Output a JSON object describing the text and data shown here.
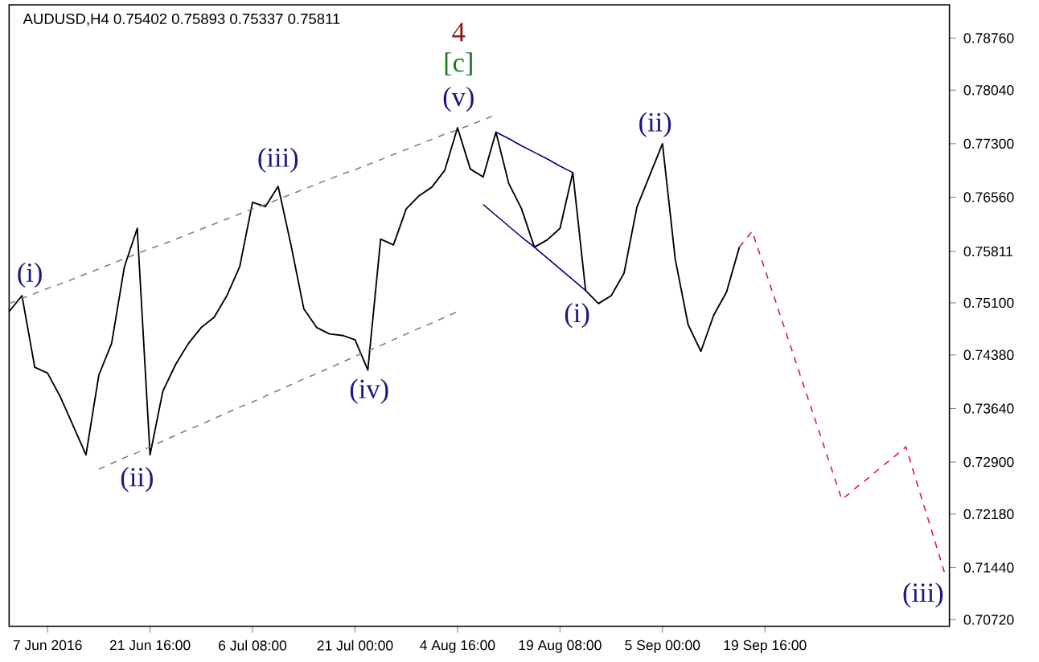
{
  "chart_data": {
    "type": "line",
    "title": "AUDUSD,H4  0.75402 0.75893 0.75337 0.75811",
    "categories": [
      null,
      null,
      null,
      "7 Jun 2016",
      null,
      null,
      null,
      null,
      null,
      null,
      null,
      "21 Jun 16:00",
      null,
      null,
      null,
      null,
      null,
      null,
      null,
      "6 Jul 08:00",
      null,
      null,
      null,
      null,
      null,
      null,
      null,
      "21 Jul 00:00",
      null,
      null,
      null,
      null,
      null,
      null,
      null,
      "4 Aug 16:00",
      null,
      null,
      null,
      null,
      null,
      null,
      null,
      "19 Aug 08:00",
      null,
      null,
      null,
      null,
      null,
      null,
      null,
      "5 Sep 00:00",
      null,
      null,
      null,
      null,
      null,
      null,
      null,
      "19 Sep 16:00",
      null,
      null,
      null,
      null,
      null,
      null,
      null,
      null,
      null,
      null,
      null,
      null,
      null,
      null
    ],
    "ylim": [
      0.7063,
      0.7922
    ],
    "yticks": [
      {
        "value": 0.7876,
        "label": "0.78760"
      },
      {
        "value": 0.7804,
        "label": "0.78040"
      },
      {
        "value": 0.773,
        "label": "0.77300"
      },
      {
        "value": 0.7656,
        "label": "0.76560"
      },
      0.75811,
      {
        "value": 0.751,
        "label": "0.75100"
      },
      {
        "value": 0.7438,
        "label": "0.74380"
      },
      {
        "value": 0.7364,
        "label": "0.73640"
      },
      {
        "value": 0.729,
        "label": "0.72900"
      },
      {
        "value": 0.7218,
        "label": "0.72180"
      },
      {
        "value": 0.7144,
        "label": "0.71440"
      },
      {
        "value": 0.7072,
        "label": "0.70720"
      }
    ],
    "grid": false,
    "marker": "none",
    "series": [
      {
        "color": "#000000",
        "line_style": "solid",
        "values": [
          0.7498,
          0.752,
          0.7421,
          0.7413,
          0.738,
          0.734,
          0.73,
          0.741,
          0.7454,
          0.756,
          0.7613,
          0.73,
          0.7388,
          0.7425,
          0.7454,
          0.7476,
          0.749,
          0.752,
          0.756,
          0.7649,
          0.7643,
          0.7671,
          0.759,
          0.7502,
          0.7476,
          0.7467,
          0.7465,
          0.7459,
          0.7417,
          0.7598,
          0.759,
          0.764,
          0.7658,
          0.767,
          0.7693,
          0.7752,
          0.7695,
          0.7684,
          0.7746,
          0.7675,
          0.764,
          0.7587,
          0.7597,
          0.7613,
          0.769,
          0.7527,
          0.7509,
          0.752,
          0.7551,
          0.7642,
          0.7686,
          0.773,
          0.757,
          0.748,
          0.7443,
          0.7493,
          0.7525,
          0.7587,
          null,
          null,
          null,
          null,
          null,
          null,
          null,
          null,
          null,
          null,
          null,
          null,
          null,
          null,
          null,
          null
        ]
      },
      {
        "color": "#e0143c",
        "line_style": "dashed",
        "values": [
          null,
          null,
          null,
          null,
          null,
          null,
          null,
          null,
          null,
          null,
          null,
          null,
          null,
          null,
          null,
          null,
          null,
          null,
          null,
          null,
          null,
          null,
          null,
          null,
          null,
          null,
          null,
          null,
          null,
          null,
          null,
          null,
          null,
          null,
          null,
          null,
          null,
          null,
          null,
          null,
          null,
          null,
          null,
          null,
          null,
          null,
          null,
          null,
          null,
          null,
          null,
          null,
          null,
          null,
          null,
          null,
          null,
          0.7587,
          0.7609,
          0.7556,
          0.7503,
          0.745,
          0.7397,
          0.7344,
          0.7291,
          0.7238,
          0.7253,
          0.7267,
          0.7282,
          0.7296,
          0.7311,
          0.7253,
          0.7196,
          0.7138
        ]
      },
      {
        "color": "#808080",
        "line_style": "dashed",
        "values": [
          0.7509,
          0.7516,
          0.7523,
          0.753,
          0.7536,
          0.7543,
          0.755,
          0.7557,
          0.7564,
          0.7571,
          0.7578,
          0.7585,
          0.7591,
          0.7598,
          0.7605,
          0.7612,
          0.7619,
          0.7626,
          0.7633,
          0.764,
          0.7646,
          0.7653,
          0.766,
          0.7667,
          0.7674,
          0.7681,
          0.7688,
          0.7694,
          0.7701,
          0.7708,
          0.7715,
          0.7722,
          0.7729,
          0.7736,
          0.7743,
          0.7749,
          0.7756,
          0.7763,
          0.777,
          null,
          null,
          null,
          null,
          null,
          null,
          null,
          null,
          null,
          null,
          null,
          null,
          null,
          null,
          null,
          null,
          null,
          null,
          null,
          null,
          null,
          null,
          null,
          null,
          null,
          null,
          null,
          null,
          null,
          null,
          null,
          null,
          null,
          null,
          null
        ]
      },
      {
        "color": "#808080",
        "line_style": "dashed",
        "values": [
          null,
          null,
          null,
          null,
          null,
          null,
          null,
          0.728,
          0.7288,
          0.7296,
          0.7303,
          0.7311,
          0.7319,
          0.7327,
          0.7335,
          0.7342,
          0.735,
          0.7358,
          0.7366,
          0.7373,
          0.7381,
          0.7389,
          0.7397,
          0.7405,
          0.7412,
          0.742,
          0.7428,
          0.7436,
          0.7444,
          0.7451,
          0.7459,
          0.7467,
          0.7475,
          0.7482,
          0.749,
          0.7498,
          null,
          null,
          null,
          null,
          null,
          null,
          null,
          null,
          null,
          null,
          null,
          null,
          null,
          null,
          null,
          null,
          null,
          null,
          null,
          null,
          null,
          null,
          null,
          null,
          null,
          null,
          null,
          null,
          null,
          null,
          null,
          null,
          null,
          null,
          null,
          null,
          null,
          null
        ]
      },
      {
        "color": "#000080",
        "line_style": "solid",
        "values": [
          null,
          null,
          null,
          null,
          null,
          null,
          null,
          null,
          null,
          null,
          null,
          null,
          null,
          null,
          null,
          null,
          null,
          null,
          null,
          null,
          null,
          null,
          null,
          null,
          null,
          null,
          null,
          null,
          null,
          null,
          null,
          null,
          null,
          null,
          null,
          null,
          null,
          null,
          0.7746,
          0.7737,
          0.7727,
          0.7718,
          0.7709,
          0.7699,
          0.769,
          null,
          null,
          null,
          null,
          null,
          null,
          null,
          null,
          null,
          null,
          null,
          null,
          null,
          null,
          null,
          null,
          null,
          null,
          null,
          null,
          null,
          null,
          null,
          null,
          null,
          null,
          null,
          null,
          null
        ]
      },
      {
        "color": "#000080",
        "line_style": "solid",
        "values": [
          null,
          null,
          null,
          null,
          null,
          null,
          null,
          null,
          null,
          null,
          null,
          null,
          null,
          null,
          null,
          null,
          null,
          null,
          null,
          null,
          null,
          null,
          null,
          null,
          null,
          null,
          null,
          null,
          null,
          null,
          null,
          null,
          null,
          null,
          null,
          null,
          null,
          0.7646,
          0.7631,
          0.7616,
          0.7601,
          0.7587,
          0.7572,
          0.7557,
          0.7542,
          0.7527,
          null,
          null,
          null,
          null,
          null,
          null,
          null,
          null,
          null,
          null,
          null,
          null,
          null,
          null,
          null,
          null,
          null,
          null,
          null,
          null,
          null,
          null,
          null,
          null,
          null,
          null,
          null,
          null
        ]
      }
    ],
    "annotations": [
      "(i)",
      "(ii)",
      "(iii)",
      "(iv)",
      "(v)",
      "[c]",
      "4",
      "(i)",
      "(ii)",
      "(iii)"
    ]
  }
}
